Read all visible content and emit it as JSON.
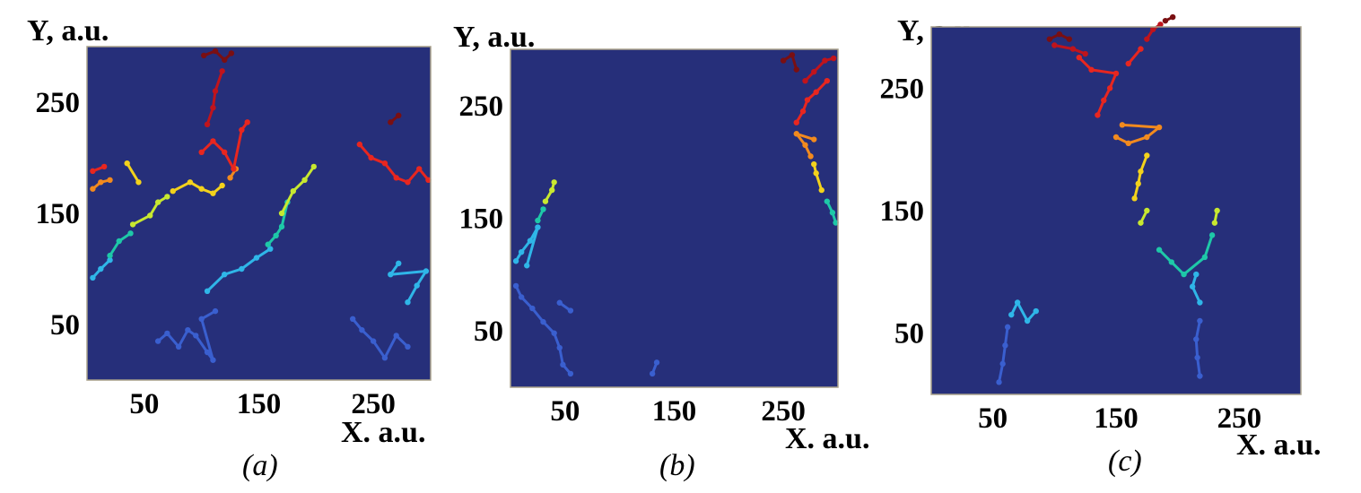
{
  "chart_data": [
    {
      "type": "scatter",
      "panel_label": "(a)",
      "ylabel": "Y, a.u.",
      "xlabel": "X. a.u.",
      "xlim": [
        0,
        300
      ],
      "ylim": [
        0,
        300
      ],
      "x_ticks": [
        50,
        150,
        250
      ],
      "y_ticks": [
        50,
        150,
        250
      ],
      "grid": false,
      "series": [
        {
          "color": "#3a5fcf",
          "points": [
            [
              62,
              35
            ],
            [
              70,
              42
            ],
            [
              80,
              30
            ],
            [
              88,
              45
            ],
            [
              95,
              40
            ],
            [
              105,
              25
            ],
            [
              110,
              18
            ],
            [
              100,
              55
            ],
            [
              112,
              62
            ]
          ]
        },
        {
          "color": "#2fb6e8",
          "points": [
            [
              105,
              80
            ],
            [
              120,
              95
            ],
            [
              135,
              100
            ],
            [
              148,
              110
            ],
            [
              160,
              118
            ]
          ]
        },
        {
          "color": "#1ec8a8",
          "points": [
            [
              158,
              122
            ],
            [
              165,
              130
            ],
            [
              170,
              138
            ],
            [
              175,
              160
            ]
          ]
        },
        {
          "color": "#c8e830",
          "points": [
            [
              170,
              150
            ],
            [
              180,
              170
            ],
            [
              190,
              180
            ],
            [
              198,
              192
            ]
          ]
        },
        {
          "color": "#3a5fcf",
          "points": [
            [
              232,
              55
            ],
            [
              240,
              45
            ],
            [
              250,
              35
            ],
            [
              260,
              20
            ],
            [
              270,
              40
            ],
            [
              280,
              30
            ]
          ]
        },
        {
          "color": "#2fb6e8",
          "points": [
            [
              280,
              70
            ],
            [
              288,
              85
            ],
            [
              296,
              98
            ],
            [
              265,
              95
            ],
            [
              272,
              105
            ]
          ]
        },
        {
          "color": "#2fb6e8",
          "points": [
            [
              5,
              92
            ],
            [
              12,
              100
            ],
            [
              20,
              108
            ]
          ]
        },
        {
          "color": "#1ec8a8",
          "points": [
            [
              20,
              112
            ],
            [
              28,
              125
            ],
            [
              38,
              132
            ]
          ]
        },
        {
          "color": "#c8e830",
          "points": [
            [
              40,
              140
            ],
            [
              55,
              148
            ],
            [
              62,
              160
            ],
            [
              70,
              165
            ]
          ]
        },
        {
          "color": "#f3d21c",
          "points": [
            [
              75,
              170
            ],
            [
              90,
              178
            ],
            [
              100,
              172
            ],
            [
              110,
              168
            ],
            [
              118,
              175
            ],
            [
              45,
              178
            ],
            [
              35,
              195
            ]
          ]
        },
        {
          "color": "#f28a1e",
          "points": [
            [
              5,
              172
            ],
            [
              12,
              178
            ],
            [
              20,
              180
            ],
            [
              125,
              182
            ],
            [
              130,
              190
            ]
          ]
        },
        {
          "color": "#e8261f",
          "points": [
            [
              5,
              188
            ],
            [
              15,
              192
            ],
            [
              100,
              205
            ],
            [
              110,
              215
            ],
            [
              120,
              205
            ],
            [
              128,
              190
            ],
            [
              135,
              225
            ],
            [
              140,
              232
            ],
            [
              238,
              212
            ],
            [
              248,
              200
            ],
            [
              260,
              195
            ],
            [
              270,
              182
            ],
            [
              280,
              178
            ],
            [
              290,
              190
            ],
            [
              298,
              180
            ]
          ]
        },
        {
          "color": "#c0141c",
          "points": [
            [
              105,
              230
            ],
            [
              110,
              245
            ],
            [
              112,
              260
            ],
            [
              118,
              278
            ]
          ]
        },
        {
          "color": "#7a0f12",
          "points": [
            [
              102,
              292
            ],
            [
              112,
              296
            ],
            [
              120,
              288
            ],
            [
              126,
              294
            ],
            [
              265,
              232
            ],
            [
              272,
              238
            ]
          ]
        }
      ]
    },
    {
      "type": "scatter",
      "panel_label": "(b)",
      "ylabel": "Y, a.u.",
      "xlabel": "X. a.u.",
      "xlim": [
        0,
        300
      ],
      "ylim": [
        0,
        300
      ],
      "x_ticks": [
        50,
        150,
        250
      ],
      "y_ticks": [
        50,
        150,
        250
      ],
      "grid": false,
      "series": [
        {
          "color": "#3a5fcf",
          "points": [
            [
              5,
              90
            ],
            [
              10,
              80
            ],
            [
              20,
              70
            ],
            [
              30,
              58
            ],
            [
              40,
              48
            ],
            [
              45,
              35
            ],
            [
              48,
              20
            ],
            [
              55,
              12
            ],
            [
              45,
              75
            ],
            [
              55,
              68
            ],
            [
              130,
              12
            ],
            [
              134,
              22
            ]
          ]
        },
        {
          "color": "#2fb6e8",
          "points": [
            [
              5,
              112
            ],
            [
              10,
              120
            ],
            [
              18,
              130
            ],
            [
              25,
              142
            ],
            [
              15,
              108
            ]
          ]
        },
        {
          "color": "#1ec8a8",
          "points": [
            [
              25,
              148
            ],
            [
              30,
              158
            ]
          ]
        },
        {
          "color": "#c8e830",
          "points": [
            [
              32,
              165
            ],
            [
              38,
              175
            ],
            [
              40,
              182
            ]
          ]
        },
        {
          "color": "#1ec8a8",
          "points": [
            [
              298,
              146
            ],
            [
              295,
              155
            ],
            [
              290,
              165
            ]
          ]
        },
        {
          "color": "#f3d21c",
          "points": [
            [
              285,
              175
            ],
            [
              280,
              190
            ],
            [
              278,
              198
            ]
          ]
        },
        {
          "color": "#f28a1e",
          "points": [
            [
              275,
              205
            ],
            [
              270,
              215
            ],
            [
              262,
              225
            ],
            [
              278,
              220
            ]
          ]
        },
        {
          "color": "#e8261f",
          "points": [
            [
              262,
              235
            ],
            [
              268,
              245
            ],
            [
              272,
              255
            ],
            [
              280,
              262
            ],
            [
              290,
              272
            ]
          ]
        },
        {
          "color": "#c0141c",
          "points": [
            [
              270,
              272
            ],
            [
              278,
              280
            ],
            [
              288,
              290
            ],
            [
              296,
              292
            ]
          ]
        },
        {
          "color": "#7a0f12",
          "points": [
            [
              250,
              290
            ],
            [
              258,
              295
            ],
            [
              262,
              282
            ]
          ]
        }
      ]
    },
    {
      "type": "scatter",
      "panel_label": "(c)",
      "ylabel": "Y, a.u.",
      "xlabel": "X. a.u.",
      "xlim": [
        0,
        300
      ],
      "ylim": [
        0,
        300
      ],
      "x_ticks": [
        50,
        150,
        250
      ],
      "y_ticks": [
        50,
        150,
        250
      ],
      "grid": false,
      "series": [
        {
          "color": "#3a5fcf",
          "points": [
            [
              55,
              10
            ],
            [
              58,
              25
            ],
            [
              60,
              40
            ],
            [
              62,
              55
            ],
            [
              218,
              15
            ],
            [
              216,
              30
            ],
            [
              215,
              45
            ],
            [
              218,
              60
            ]
          ]
        },
        {
          "color": "#2fb6e8",
          "points": [
            [
              65,
              65
            ],
            [
              70,
              75
            ],
            [
              78,
              60
            ],
            [
              85,
              68
            ],
            [
              218,
              75
            ],
            [
              212,
              88
            ],
            [
              215,
              98
            ]
          ]
        },
        {
          "color": "#1ec8a8",
          "points": [
            [
              185,
              118
            ],
            [
              195,
              108
            ],
            [
              205,
              98
            ],
            [
              222,
              112
            ],
            [
              228,
              130
            ]
          ]
        },
        {
          "color": "#c8e830",
          "points": [
            [
              170,
              140
            ],
            [
              175,
              150
            ],
            [
              230,
              140
            ],
            [
              232,
              150
            ]
          ]
        },
        {
          "color": "#f3d21c",
          "points": [
            [
              165,
              160
            ],
            [
              168,
              172
            ],
            [
              170,
              182
            ],
            [
              175,
              195
            ]
          ]
        },
        {
          "color": "#f28a1e",
          "points": [
            [
              150,
              210
            ],
            [
              160,
              205
            ],
            [
              175,
              210
            ],
            [
              185,
              218
            ],
            [
              155,
              220
            ]
          ]
        },
        {
          "color": "#e8261f",
          "points": [
            [
              135,
              228
            ],
            [
              140,
              240
            ],
            [
              145,
              250
            ],
            [
              150,
              262
            ],
            [
              130,
              265
            ],
            [
              120,
              275
            ],
            [
              160,
              270
            ],
            [
              170,
              282
            ]
          ]
        },
        {
          "color": "#c0141c",
          "points": [
            [
              100,
              285
            ],
            [
              115,
              282
            ],
            [
              125,
              278
            ],
            [
              175,
              290
            ],
            [
              180,
              298
            ],
            [
              186,
              302
            ]
          ]
        },
        {
          "color": "#7a0f12",
          "points": [
            [
              96,
              290
            ],
            [
              104,
              294
            ],
            [
              112,
              290
            ],
            [
              190,
              305
            ],
            [
              196,
              308
            ]
          ]
        }
      ]
    }
  ]
}
